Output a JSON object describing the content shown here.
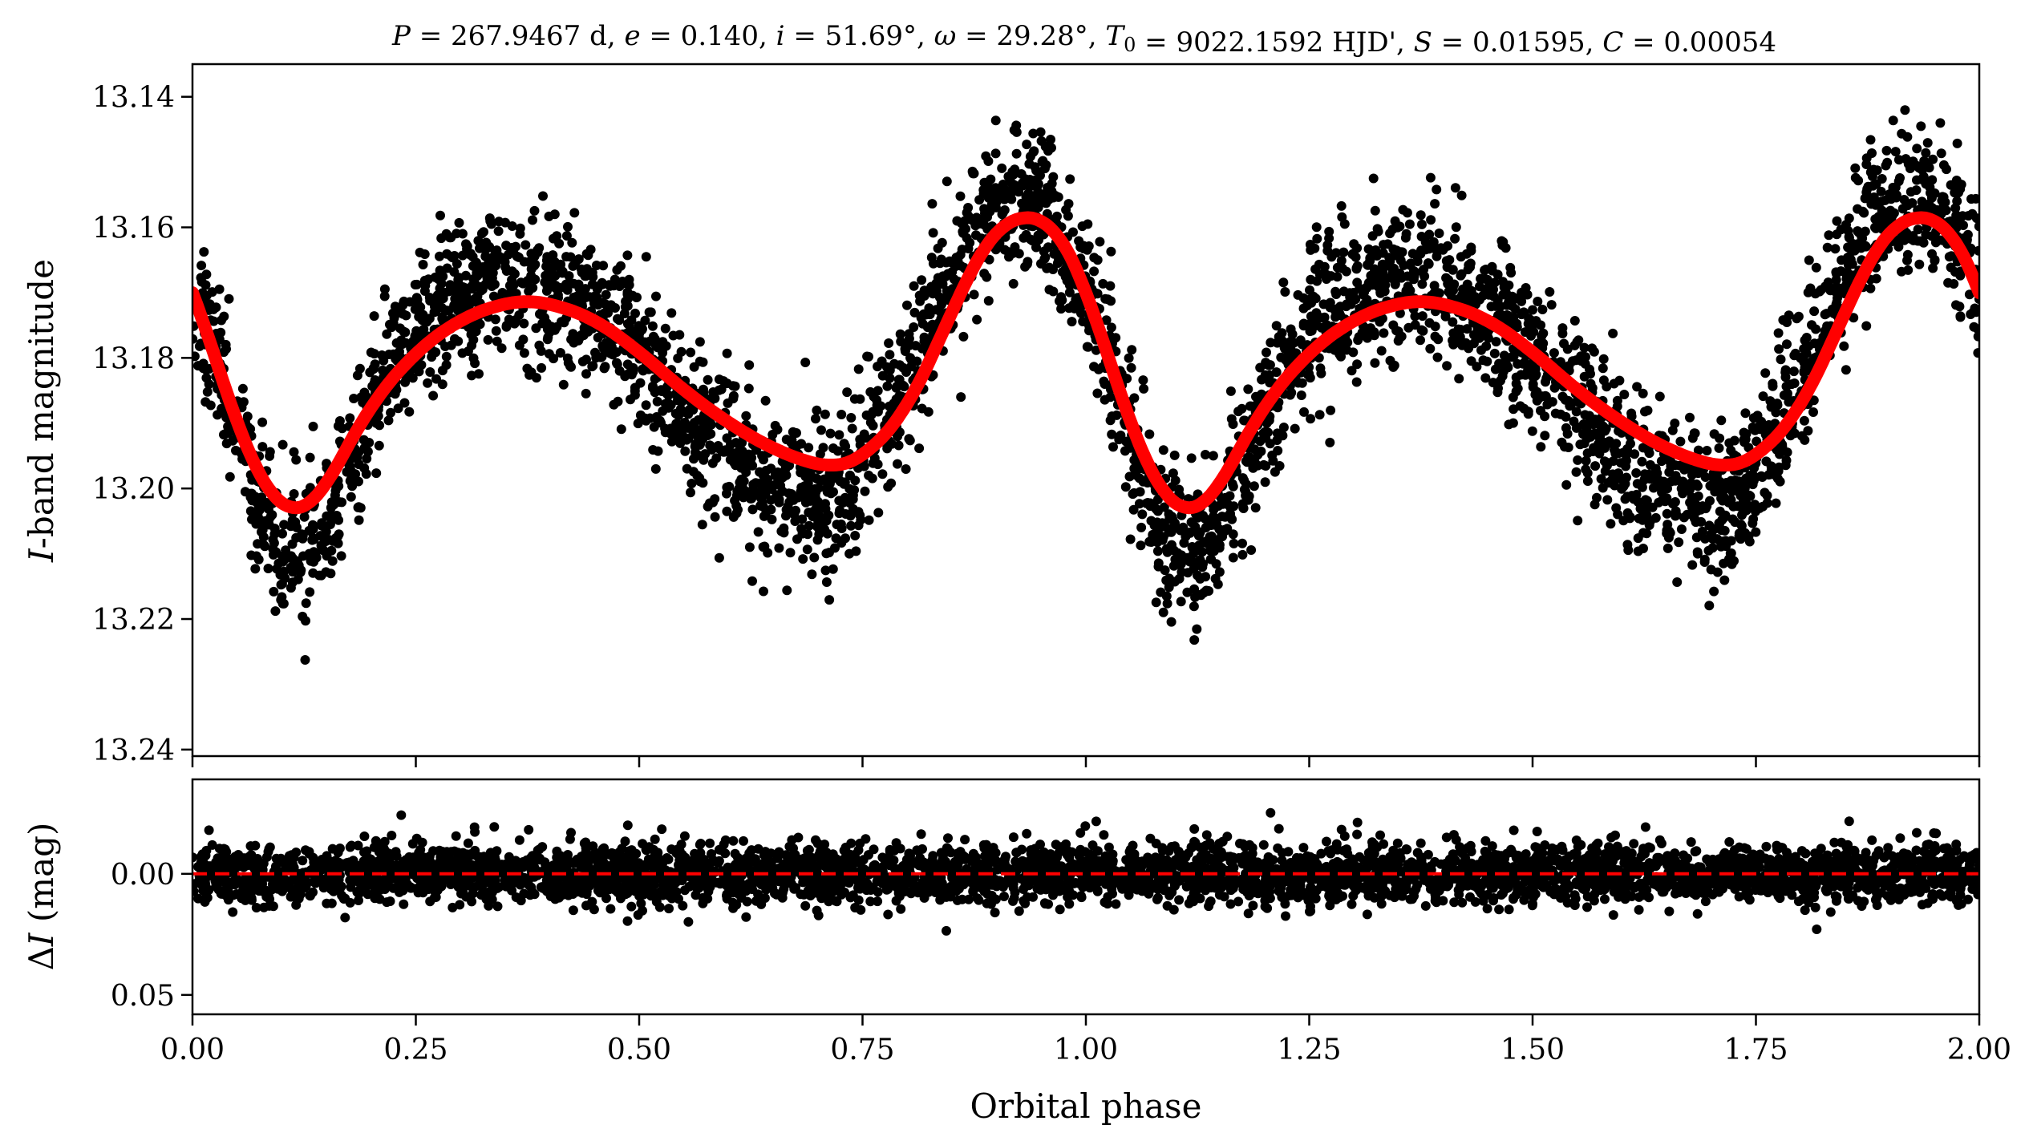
{
  "chart_data": [
    {
      "type": "scatter",
      "title": "P = 267.9467 d, e = 0.140, i = 51.69°, ω = 29.28°, T0 = 9022.1592 HJD', S = 0.01595, C = 0.00054",
      "xlabel": "",
      "ylabel": "I-band magnitude",
      "xlim": [
        0.0,
        2.0
      ],
      "ylim": [
        13.135,
        13.241
      ],
      "y_inverted": true,
      "yticks": [
        "13.14",
        "13.16",
        "13.18",
        "13.20",
        "13.22",
        "13.24"
      ],
      "ytick_values": [
        13.14,
        13.16,
        13.18,
        13.2,
        13.22,
        13.24
      ],
      "grid": false,
      "series": [
        {
          "kind": "observations",
          "color": "#000000",
          "marker": "filled-circle",
          "period": 1.0,
          "x": [
            0.0,
            0.03,
            0.06,
            0.09,
            0.12,
            0.15,
            0.18,
            0.22,
            0.26,
            0.3,
            0.34,
            0.38,
            0.42,
            0.46,
            0.5,
            0.54,
            0.58,
            0.62,
            0.66,
            0.7,
            0.72,
            0.76,
            0.8,
            0.84,
            0.88,
            0.91,
            0.94,
            0.97,
            1.0
          ],
          "y": [
            13.169,
            13.181,
            13.196,
            13.207,
            13.21,
            13.206,
            13.195,
            13.182,
            13.174,
            13.17,
            13.168,
            13.168,
            13.17,
            13.174,
            13.18,
            13.186,
            13.192,
            13.198,
            13.201,
            13.203,
            13.202,
            13.194,
            13.183,
            13.17,
            13.16,
            13.156,
            13.155,
            13.161,
            13.169
          ],
          "scatter": 0.008
        },
        {
          "kind": "model",
          "color": "#ff0000",
          "period": 1.0,
          "x": [
            0.0,
            0.02,
            0.04,
            0.06,
            0.08,
            0.1,
            0.12,
            0.14,
            0.16,
            0.18,
            0.2,
            0.25,
            0.3,
            0.35,
            0.38,
            0.4,
            0.45,
            0.5,
            0.55,
            0.6,
            0.65,
            0.7,
            0.72,
            0.75,
            0.8,
            0.85,
            0.88,
            0.9,
            0.92,
            0.94,
            0.96,
            0.98,
            1.0
          ],
          "y": [
            13.169,
            13.178,
            13.186,
            13.194,
            13.2,
            13.203,
            13.204,
            13.202,
            13.197,
            13.192,
            13.187,
            13.179,
            13.174,
            13.1715,
            13.1712,
            13.1716,
            13.174,
            13.179,
            13.185,
            13.19,
            13.194,
            13.1965,
            13.1968,
            13.1955,
            13.188,
            13.173,
            13.164,
            13.16,
            13.1585,
            13.158,
            13.159,
            13.163,
            13.169
          ]
        }
      ]
    },
    {
      "type": "scatter",
      "xlabel": "Orbital phase",
      "ylabel": "ΔI (mag)",
      "xlim": [
        0.0,
        2.0
      ],
      "ylim": [
        -0.039,
        0.058
      ],
      "y_inverted": true,
      "xticks": [
        "0.00",
        "0.25",
        "0.50",
        "0.75",
        "1.00",
        "1.25",
        "1.50",
        "1.75",
        "2.00"
      ],
      "xtick_values": [
        0.0,
        0.25,
        0.5,
        0.75,
        1.0,
        1.25,
        1.5,
        1.75,
        2.0
      ],
      "yticks": [
        "0.00",
        "0.05"
      ],
      "ytick_values": [
        0.0,
        0.05
      ],
      "grid": false,
      "series": [
        {
          "kind": "residuals",
          "color": "#000000",
          "marker": "filled-circle",
          "center": 0.0,
          "scatter": 0.008
        },
        {
          "kind": "zero-line",
          "color": "#ff0000",
          "linestyle": "dashed",
          "y": 0.0
        }
      ]
    }
  ]
}
